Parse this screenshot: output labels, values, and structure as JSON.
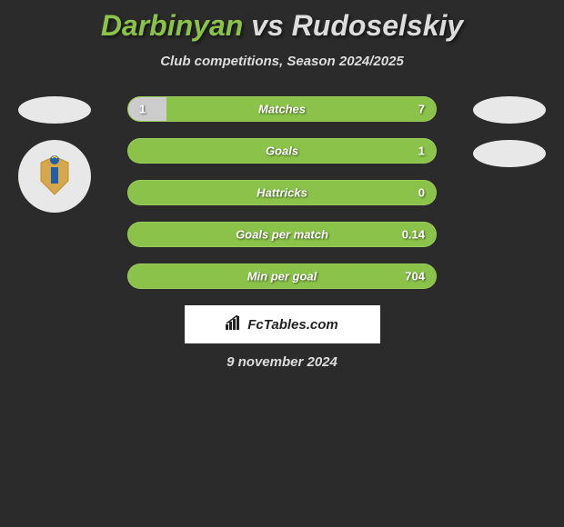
{
  "title": {
    "player1": "Darbinyan",
    "vs": "vs",
    "player2": "Rudoselskiy"
  },
  "subtitle": "Club competitions, Season 2024/2025",
  "colors": {
    "player1_bar": "#cccccc",
    "player2_bar": "#8bc34a",
    "background": "#2b2b2b",
    "text_light": "#dddddd"
  },
  "stats": [
    {
      "label": "Matches",
      "left_val": "1",
      "right_val": "7",
      "left_pct": 12.5
    },
    {
      "label": "Goals",
      "left_val": "",
      "right_val": "1",
      "left_pct": 0
    },
    {
      "label": "Hattricks",
      "left_val": "",
      "right_val": "0",
      "left_pct": 0
    },
    {
      "label": "Goals per match",
      "left_val": "",
      "right_val": "0.14",
      "left_pct": 0
    },
    {
      "label": "Min per goal",
      "left_val": "",
      "right_val": "704",
      "left_pct": 0
    }
  ],
  "watermark": "FcTables.com",
  "date": "9 november 2024"
}
